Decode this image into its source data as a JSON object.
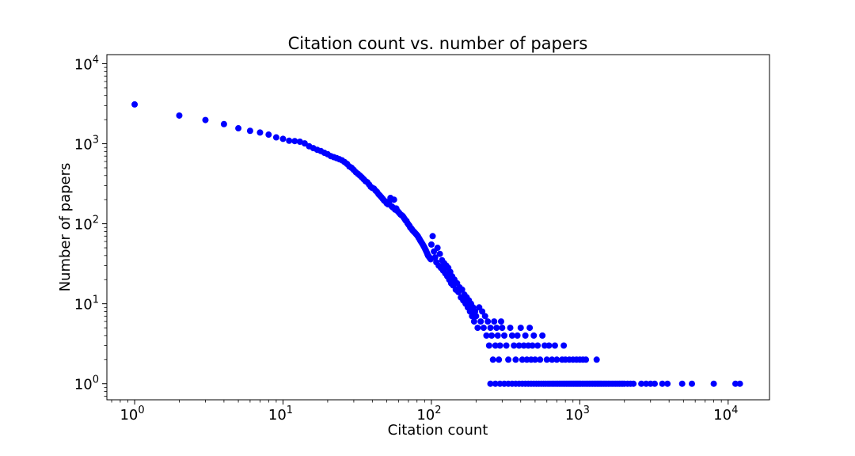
{
  "chart_data": {
    "type": "scatter",
    "title": "Citation count vs. number of papers",
    "xlabel": "Citation count",
    "ylabel": "Number of papers",
    "xscale": "log",
    "yscale": "log",
    "xlim": [
      0.65,
      19000
    ],
    "ylim": [
      0.63,
      13000
    ],
    "xticks": [
      {
        "value": 1,
        "mantissa": "10",
        "exp": "0"
      },
      {
        "value": 10,
        "mantissa": "10",
        "exp": "1"
      },
      {
        "value": 100,
        "mantissa": "10",
        "exp": "2"
      },
      {
        "value": 1000,
        "mantissa": "10",
        "exp": "3"
      },
      {
        "value": 10000,
        "mantissa": "10",
        "exp": "4"
      }
    ],
    "yticks": [
      {
        "value": 1,
        "mantissa": "10",
        "exp": "0"
      },
      {
        "value": 10,
        "mantissa": "10",
        "exp": "1"
      },
      {
        "value": 100,
        "mantissa": "10",
        "exp": "2"
      },
      {
        "value": 1000,
        "mantissa": "10",
        "exp": "3"
      },
      {
        "value": 10000,
        "mantissa": "10",
        "exp": "4"
      }
    ],
    "grid": false,
    "marker_color": "#0000ff",
    "points": [
      [
        1,
        3100
      ],
      [
        2,
        2250
      ],
      [
        3,
        1980
      ],
      [
        4,
        1760
      ],
      [
        5,
        1560
      ],
      [
        6,
        1450
      ],
      [
        7,
        1380
      ],
      [
        8,
        1300
      ],
      [
        9,
        1200
      ],
      [
        10,
        1150
      ],
      [
        11,
        1090
      ],
      [
        12,
        1080
      ],
      [
        13,
        1060
      ],
      [
        14,
        1010
      ],
      [
        15,
        930
      ],
      [
        16,
        880
      ],
      [
        17,
        840
      ],
      [
        18,
        810
      ],
      [
        19,
        770
      ],
      [
        20,
        740
      ],
      [
        21,
        700
      ],
      [
        22,
        680
      ],
      [
        23,
        660
      ],
      [
        24,
        640
      ],
      [
        25,
        620
      ],
      [
        26,
        590
      ],
      [
        27,
        560
      ],
      [
        28,
        520
      ],
      [
        29,
        500
      ],
      [
        30,
        470
      ],
      [
        31,
        440
      ],
      [
        32,
        420
      ],
      [
        33,
        400
      ],
      [
        34,
        380
      ],
      [
        35,
        360
      ],
      [
        36,
        340
      ],
      [
        37,
        330
      ],
      [
        38,
        310
      ],
      [
        39,
        290
      ],
      [
        40,
        280
      ],
      [
        41,
        275
      ],
      [
        42,
        260
      ],
      [
        43,
        250
      ],
      [
        44,
        235
      ],
      [
        45,
        225
      ],
      [
        46,
        215
      ],
      [
        47,
        205
      ],
      [
        48,
        195
      ],
      [
        49,
        190
      ],
      [
        50,
        180
      ],
      [
        51,
        175
      ],
      [
        52,
        190
      ],
      [
        53,
        210
      ],
      [
        54,
        165
      ],
      [
        55,
        160
      ],
      [
        56,
        200
      ],
      [
        57,
        150
      ],
      [
        58,
        155
      ],
      [
        59,
        145
      ],
      [
        60,
        140
      ],
      [
        61,
        135
      ],
      [
        62,
        130
      ],
      [
        63,
        128
      ],
      [
        64,
        125
      ],
      [
        65,
        120
      ],
      [
        66,
        115
      ],
      [
        67,
        110
      ],
      [
        68,
        108
      ],
      [
        69,
        102
      ],
      [
        70,
        98
      ],
      [
        71,
        95
      ],
      [
        72,
        90
      ],
      [
        73,
        88
      ],
      [
        74,
        85
      ],
      [
        75,
        82
      ],
      [
        76,
        80
      ],
      [
        77,
        78
      ],
      [
        78,
        76
      ],
      [
        79,
        74
      ],
      [
        80,
        72
      ],
      [
        81,
        70
      ],
      [
        82,
        67
      ],
      [
        83,
        65
      ],
      [
        84,
        62
      ],
      [
        85,
        60
      ],
      [
        86,
        58
      ],
      [
        87,
        56
      ],
      [
        88,
        54
      ],
      [
        89,
        52
      ],
      [
        90,
        50
      ],
      [
        91,
        48
      ],
      [
        92,
        46
      ],
      [
        93,
        44
      ],
      [
        94,
        42
      ],
      [
        95,
        40
      ],
      [
        96,
        39
      ],
      [
        97,
        38
      ],
      [
        98,
        37
      ],
      [
        99,
        36
      ],
      [
        100,
        55
      ],
      [
        102,
        70
      ],
      [
        104,
        45
      ],
      [
        106,
        38
      ],
      [
        108,
        33
      ],
      [
        110,
        50
      ],
      [
        112,
        30
      ],
      [
        114,
        42
      ],
      [
        116,
        28
      ],
      [
        118,
        35
      ],
      [
        120,
        26
      ],
      [
        122,
        32
      ],
      [
        124,
        24
      ],
      [
        126,
        30
      ],
      [
        128,
        22
      ],
      [
        130,
        28
      ],
      [
        132,
        20
      ],
      [
        134,
        25
      ],
      [
        136,
        18
      ],
      [
        138,
        22
      ],
      [
        140,
        17
      ],
      [
        143,
        20
      ],
      [
        146,
        15
      ],
      [
        149,
        18
      ],
      [
        152,
        14
      ],
      [
        155,
        16
      ],
      [
        158,
        12
      ],
      [
        161,
        15
      ],
      [
        164,
        11
      ],
      [
        167,
        13
      ],
      [
        170,
        10
      ],
      [
        173,
        12
      ],
      [
        176,
        9
      ],
      [
        179,
        11
      ],
      [
        182,
        8
      ],
      [
        185,
        10
      ],
      [
        188,
        7
      ],
      [
        191,
        9
      ],
      [
        194,
        6
      ],
      [
        197,
        8
      ],
      [
        200,
        7
      ],
      [
        205,
        5
      ],
      [
        210,
        9
      ],
      [
        215,
        6
      ],
      [
        220,
        8
      ],
      [
        225,
        5
      ],
      [
        230,
        7
      ],
      [
        235,
        4
      ],
      [
        240,
        6
      ],
      [
        245,
        3
      ],
      [
        250,
        5
      ],
      [
        255,
        4
      ],
      [
        260,
        2
      ],
      [
        265,
        6
      ],
      [
        270,
        3
      ],
      [
        275,
        5
      ],
      [
        280,
        4
      ],
      [
        285,
        2
      ],
      [
        290,
        3
      ],
      [
        295,
        6
      ],
      [
        300,
        5
      ],
      [
        310,
        4
      ],
      [
        320,
        3
      ],
      [
        330,
        2
      ],
      [
        340,
        5
      ],
      [
        350,
        4
      ],
      [
        360,
        3
      ],
      [
        370,
        2
      ],
      [
        380,
        4
      ],
      [
        390,
        3
      ],
      [
        400,
        5
      ],
      [
        410,
        2
      ],
      [
        420,
        3
      ],
      [
        430,
        4
      ],
      [
        440,
        2
      ],
      [
        450,
        3
      ],
      [
        460,
        5
      ],
      [
        470,
        2
      ],
      [
        480,
        3
      ],
      [
        490,
        4
      ],
      [
        500,
        2
      ],
      [
        520,
        3
      ],
      [
        540,
        2
      ],
      [
        560,
        4
      ],
      [
        580,
        3
      ],
      [
        600,
        2
      ],
      [
        620,
        3
      ],
      [
        650,
        2
      ],
      [
        680,
        3
      ],
      [
        700,
        2
      ],
      [
        250,
        1
      ],
      [
        270,
        1
      ],
      [
        290,
        1
      ],
      [
        310,
        1
      ],
      [
        330,
        1
      ],
      [
        350,
        1
      ],
      [
        370,
        1
      ],
      [
        390,
        1
      ],
      [
        410,
        1
      ],
      [
        430,
        1
      ],
      [
        450,
        1
      ],
      [
        470,
        1
      ],
      [
        490,
        1
      ],
      [
        510,
        1
      ],
      [
        530,
        1
      ],
      [
        550,
        1
      ],
      [
        570,
        1
      ],
      [
        590,
        1
      ],
      [
        610,
        1
      ],
      [
        630,
        1
      ],
      [
        650,
        1
      ],
      [
        670,
        1
      ],
      [
        690,
        1
      ],
      [
        710,
        1
      ],
      [
        730,
        1
      ],
      [
        750,
        1
      ],
      [
        770,
        1
      ],
      [
        790,
        1
      ],
      [
        810,
        1
      ],
      [
        830,
        1
      ],
      [
        850,
        1
      ],
      [
        870,
        1
      ],
      [
        890,
        1
      ],
      [
        910,
        1
      ],
      [
        930,
        1
      ],
      [
        950,
        1
      ],
      [
        970,
        1
      ],
      [
        990,
        1
      ],
      [
        1010,
        1
      ],
      [
        1040,
        1
      ],
      [
        1070,
        1
      ],
      [
        1100,
        1
      ],
      [
        1130,
        1
      ],
      [
        1160,
        1
      ],
      [
        1190,
        1
      ],
      [
        1220,
        1
      ],
      [
        1250,
        1
      ],
      [
        1280,
        1
      ],
      [
        1310,
        1
      ],
      [
        1340,
        1
      ],
      [
        1370,
        1
      ],
      [
        1400,
        1
      ],
      [
        1440,
        1
      ],
      [
        1480,
        1
      ],
      [
        1520,
        1
      ],
      [
        1560,
        1
      ],
      [
        1600,
        1
      ],
      [
        1650,
        1
      ],
      [
        1700,
        1
      ],
      [
        1750,
        1
      ],
      [
        1800,
        1
      ],
      [
        1850,
        1
      ],
      [
        1900,
        1
      ],
      [
        1950,
        1
      ],
      [
        2000,
        1
      ],
      [
        2100,
        1
      ],
      [
        2200,
        1
      ],
      [
        2300,
        1
      ],
      [
        2600,
        1
      ],
      [
        2800,
        1
      ],
      [
        3000,
        1
      ],
      [
        3200,
        1
      ],
      [
        3600,
        1
      ],
      [
        3900,
        1
      ],
      [
        4900,
        1
      ],
      [
        5700,
        1
      ],
      [
        8000,
        1
      ],
      [
        11200,
        1
      ],
      [
        12000,
        1
      ],
      [
        800,
        2
      ],
      [
        850,
        2
      ],
      [
        900,
        2
      ],
      [
        950,
        2
      ],
      [
        1000,
        2
      ],
      [
        1050,
        2
      ],
      [
        1100,
        2
      ],
      [
        1300,
        2
      ],
      [
        780,
        3
      ],
      [
        760,
        2
      ]
    ]
  }
}
